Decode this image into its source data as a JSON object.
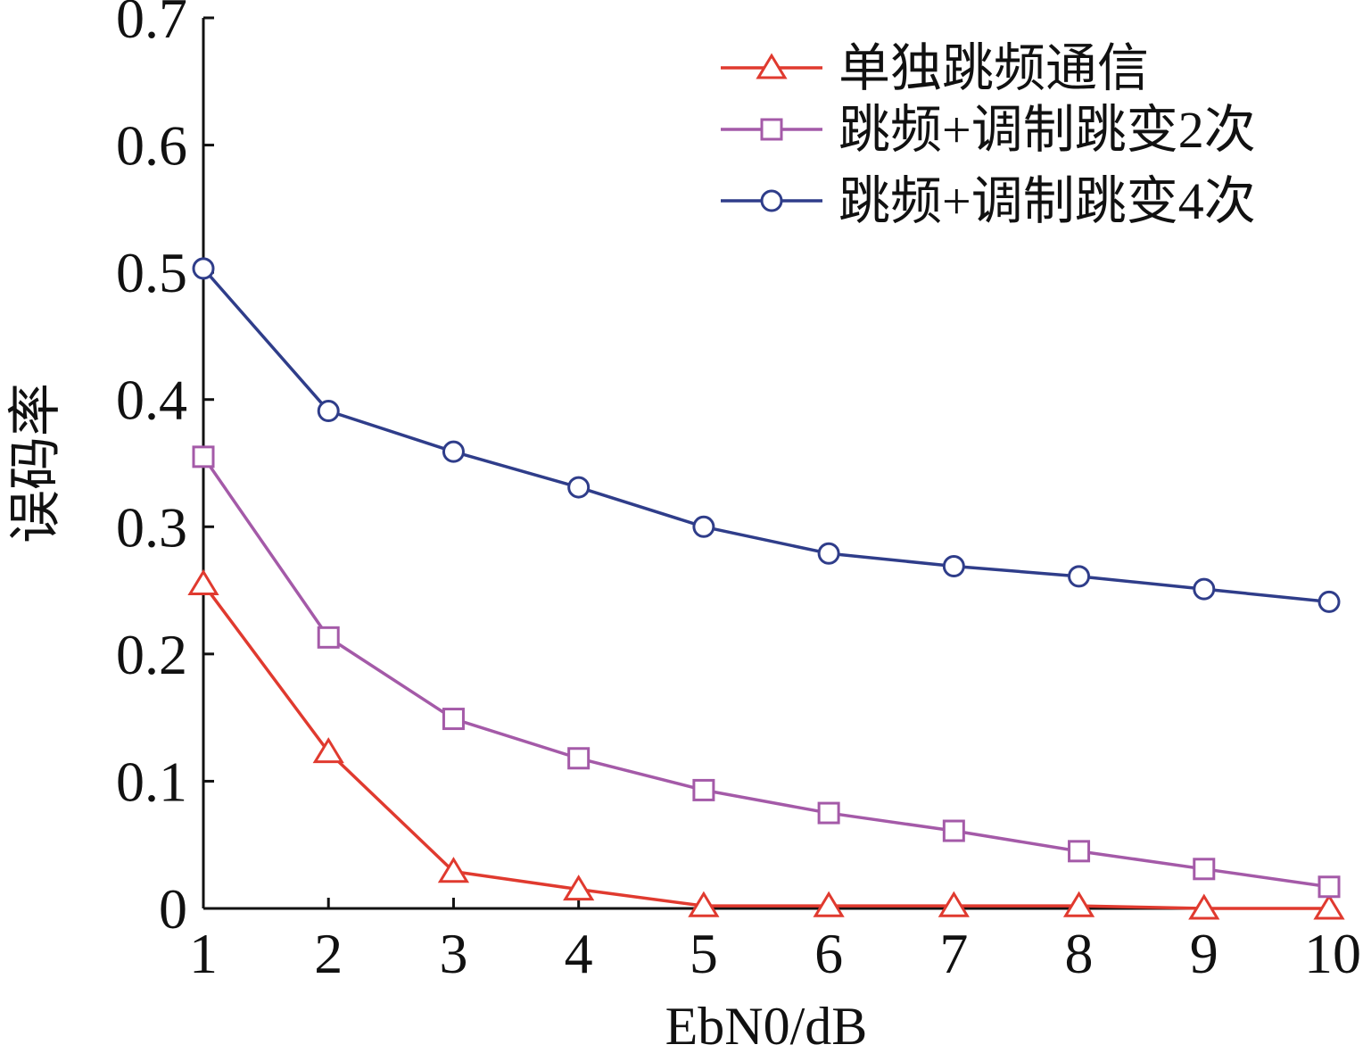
{
  "chart_data": {
    "type": "line",
    "title": "",
    "xlabel": "EbN0/dB",
    "ylabel": "误码率",
    "x": [
      1,
      2,
      3,
      4,
      5,
      6,
      7,
      8,
      9,
      10
    ],
    "xlim": [
      1,
      10
    ],
    "ylim": [
      0,
      0.7
    ],
    "x_ticks": [
      "1",
      "2",
      "3",
      "4",
      "5",
      "6",
      "7",
      "8",
      "9",
      "10"
    ],
    "y_ticks": [
      "0",
      "0.1",
      "0.2",
      "0.3",
      "0.4",
      "0.5",
      "0.6",
      "0.7"
    ],
    "grid": false,
    "legend_position": "top-right",
    "series": [
      {
        "name": "单独跳频通信",
        "color": "#e03a2f",
        "marker": "triangle",
        "values": [
          0.255,
          0.123,
          0.029,
          0.015,
          0.002,
          0.002,
          0.002,
          0.002,
          0.0,
          0.0
        ]
      },
      {
        "name": "跳频+调制跳变2次",
        "color": "#a45aa8",
        "marker": "square",
        "values": [
          0.355,
          0.213,
          0.149,
          0.118,
          0.093,
          0.075,
          0.061,
          0.045,
          0.031,
          0.017
        ]
      },
      {
        "name": "跳频+调制跳变4次",
        "color": "#2f3d8a",
        "marker": "circle",
        "values": [
          0.503,
          0.391,
          0.359,
          0.331,
          0.3,
          0.279,
          0.269,
          0.261,
          0.251,
          0.241
        ]
      }
    ]
  }
}
